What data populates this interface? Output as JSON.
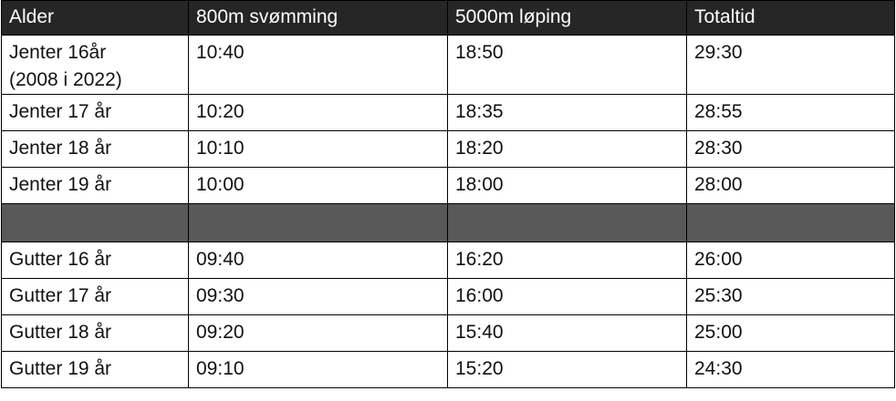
{
  "table": {
    "header": [
      "Alder",
      "800m svømming",
      "5000m løping",
      "Totaltid"
    ],
    "groups": [
      [
        [
          "Jenter 16år\n(2008 i 2022)",
          "10:40",
          "18:50",
          "29:30"
        ],
        [
          "Jenter 17 år",
          "10:20",
          "18:35",
          "28:55"
        ],
        [
          "Jenter 18 år",
          "10:10",
          "18:20",
          "28:30"
        ],
        [
          "Jenter 19 år",
          "10:00",
          "18:00",
          "28:00"
        ]
      ],
      [
        [
          "Gutter 16 år",
          "09:40",
          "16:20",
          "26:00"
        ],
        [
          "Gutter 17 år",
          "09:30",
          "16:00",
          "25:30"
        ],
        [
          "Gutter 18 år",
          "09:20",
          "15:40",
          "25:00"
        ],
        [
          "Gutter 19 år",
          "09:10",
          "15:20",
          "24:30"
        ]
      ]
    ]
  }
}
